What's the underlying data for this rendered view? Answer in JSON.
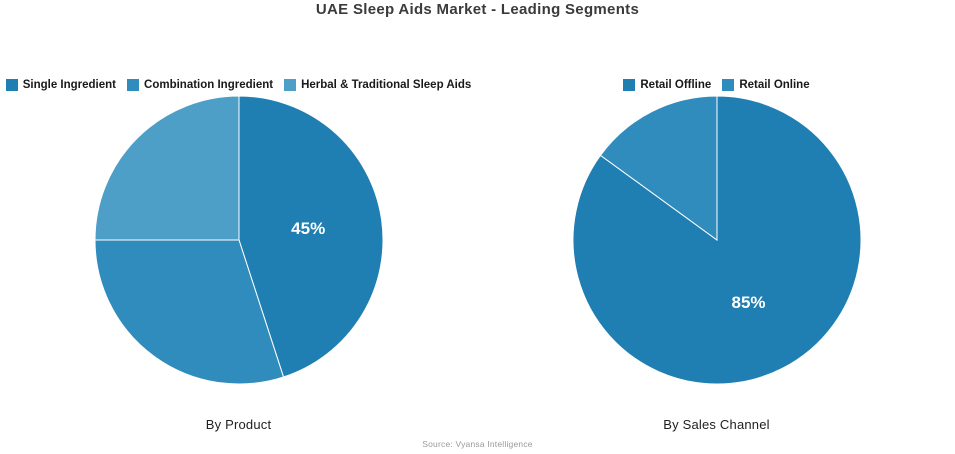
{
  "title": "UAE Sleep Aids Market - Leading Segments",
  "source": "Source: Vyansa Intelligence",
  "chart_data": [
    {
      "type": "pie",
      "title": "By Product",
      "labels": [
        "Single Ingredient",
        "Combination Ingredient",
        "Herbal & Traditional Sleep Aids"
      ],
      "values": [
        45,
        30,
        25
      ],
      "colors": [
        "#1f7eb2",
        "#2f8cbd",
        "#4d9fc7"
      ],
      "start_angle_deg": 0,
      "legend_position": "top",
      "data_label": {
        "text": "45%",
        "slice": 0
      }
    },
    {
      "type": "pie",
      "title": "By Sales Channel",
      "labels": [
        "Retail Offline",
        "Retail Online"
      ],
      "values": [
        85,
        15
      ],
      "colors": [
        "#1f7eb2",
        "#2f8cbd"
      ],
      "start_angle_deg": 0,
      "legend_position": "top",
      "data_label": {
        "text": "85%",
        "slice": 0
      }
    }
  ]
}
